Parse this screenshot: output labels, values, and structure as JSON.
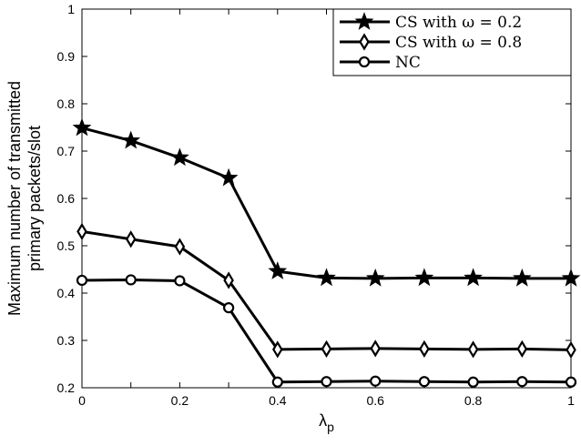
{
  "chart_data": {
    "type": "line",
    "xlabel": "λ",
    "xlabel_sub": "p",
    "ylabel_line1": "Maximum number of transmitted",
    "ylabel_line2": "primary packets/slot",
    "xlim": [
      0,
      1
    ],
    "ylim": [
      0.2,
      1
    ],
    "xticks": [
      0,
      0.1,
      0.2,
      0.3,
      0.4,
      0.5,
      0.6,
      0.7,
      0.8,
      0.9,
      1
    ],
    "xtick_labels": [
      "0",
      "",
      "0.2",
      "",
      "0.4",
      "",
      "0.6",
      "",
      "0.8",
      "",
      "1"
    ],
    "yticks": [
      0.2,
      0.3,
      0.4,
      0.5,
      0.6,
      0.7,
      0.8,
      0.9,
      1
    ],
    "ytick_labels": [
      "0.2",
      "0.3",
      "0.4",
      "0.5",
      "0.6",
      "0.7",
      "0.8",
      "0.9",
      "1"
    ],
    "grid": false,
    "legend_position": "top-right",
    "x": [
      0,
      0.1,
      0.2,
      0.3,
      0.4,
      0.5,
      0.6,
      0.7,
      0.8,
      0.9,
      1
    ],
    "series": [
      {
        "name": "CS with ω = 0.2",
        "marker": "star",
        "color": "#000000",
        "values": [
          0.749,
          0.722,
          0.686,
          0.643,
          0.446,
          0.432,
          0.431,
          0.432,
          0.432,
          0.431,
          0.431
        ]
      },
      {
        "name": "CS with ω = 0.8",
        "marker": "diamond",
        "color": "#000000",
        "values": [
          0.53,
          0.514,
          0.498,
          0.427,
          0.281,
          0.282,
          0.283,
          0.282,
          0.281,
          0.282,
          0.28
        ]
      },
      {
        "name": "NC",
        "marker": "circle",
        "color": "#000000",
        "values": [
          0.427,
          0.428,
          0.426,
          0.369,
          0.212,
          0.213,
          0.214,
          0.213,
          0.212,
          0.213,
          0.212
        ]
      }
    ]
  }
}
